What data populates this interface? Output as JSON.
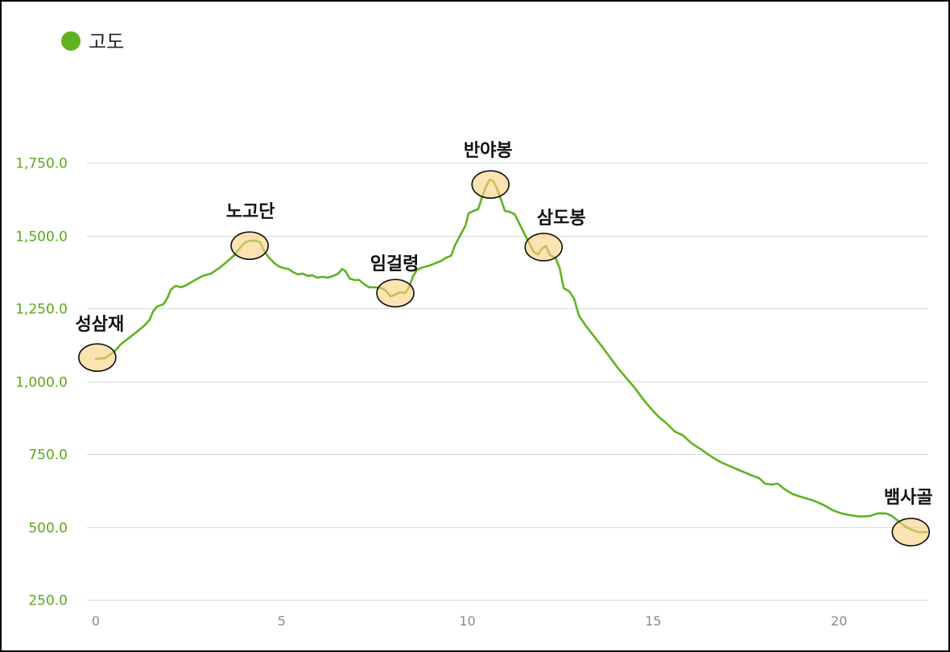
{
  "colors": {
    "grid": "#d8d8d8",
    "y_tick_label": "#58a91a",
    "x_tick_label": "#8a8a8a",
    "legend_text": "#222222",
    "marker_fill": "#fbcf7e",
    "marker_stroke": "#111111",
    "annotation_text": "#111111"
  },
  "chart_data": {
    "type": "line",
    "xlim": [
      0,
      22.4
    ],
    "ylim": [
      250,
      1750
    ],
    "x_ticks": [
      0,
      5,
      10,
      15,
      20
    ],
    "x_tick_labels": [
      "0",
      "5",
      "10",
      "15",
      "20"
    ],
    "y_ticks": [
      250,
      500,
      750,
      1000,
      1250,
      1500,
      1750
    ],
    "y_tick_labels": [
      "250.0",
      "500.0",
      "750.0",
      "1,000.0",
      "1,250.0",
      "1,500.0",
      "1,750.0"
    ],
    "grid": true,
    "legend_position": "top-left",
    "series": [
      {
        "name": "고도",
        "color": "#5fb320",
        "x": [
          0.0,
          0.24,
          0.5,
          0.67,
          0.89,
          1.11,
          1.32,
          1.45,
          1.54,
          1.65,
          1.82,
          1.93,
          2.02,
          2.15,
          2.3,
          2.45,
          2.67,
          2.88,
          3.1,
          3.32,
          3.53,
          3.75,
          3.9,
          4.03,
          4.16,
          4.31,
          4.42,
          4.53,
          4.66,
          4.79,
          4.92,
          5.05,
          5.18,
          5.31,
          5.44,
          5.57,
          5.7,
          5.83,
          5.96,
          6.09,
          6.24,
          6.39,
          6.52,
          6.63,
          6.72,
          6.83,
          6.96,
          7.09,
          7.22,
          7.35,
          7.52,
          7.69,
          7.8,
          7.93,
          8.06,
          8.19,
          8.32,
          8.43,
          8.54,
          8.65,
          8.8,
          8.97,
          9.14,
          9.3,
          9.43,
          9.56,
          9.66,
          9.82,
          9.95,
          10.03,
          10.16,
          10.29,
          10.38,
          10.49,
          10.6,
          10.7,
          10.81,
          10.92,
          11.01,
          11.14,
          11.27,
          11.4,
          11.53,
          11.66,
          11.79,
          11.9,
          12.0,
          12.11,
          12.22,
          12.37,
          12.48,
          12.59,
          12.74,
          12.87,
          13.0,
          13.19,
          13.41,
          13.63,
          13.85,
          14.06,
          14.28,
          14.5,
          14.71,
          14.93,
          15.15,
          15.36,
          15.58,
          15.8,
          16.01,
          16.27,
          16.53,
          16.81,
          17.1,
          17.36,
          17.62,
          17.85,
          18.01,
          18.18,
          18.35,
          18.55,
          18.76,
          19.02,
          19.31,
          19.57,
          19.83,
          20.06,
          20.3,
          20.56,
          20.82,
          21.04,
          21.26,
          21.43,
          21.61,
          21.78,
          21.95,
          22.13,
          22.38
        ],
        "y": [
          1076,
          1079,
          1101,
          1126,
          1148,
          1170,
          1192,
          1211,
          1239,
          1256,
          1264,
          1286,
          1314,
          1327,
          1322,
          1330,
          1347,
          1361,
          1369,
          1388,
          1410,
          1435,
          1460,
          1477,
          1482,
          1482,
          1477,
          1446,
          1424,
          1407,
          1394,
          1388,
          1385,
          1374,
          1366,
          1369,
          1361,
          1363,
          1355,
          1358,
          1355,
          1361,
          1369,
          1385,
          1377,
          1352,
          1347,
          1347,
          1333,
          1322,
          1322,
          1319,
          1311,
          1291,
          1297,
          1305,
          1302,
          1322,
          1361,
          1383,
          1391,
          1396,
          1405,
          1413,
          1424,
          1430,
          1465,
          1504,
          1535,
          1576,
          1584,
          1590,
          1626,
          1664,
          1692,
          1686,
          1656,
          1617,
          1584,
          1581,
          1573,
          1540,
          1507,
          1474,
          1443,
          1435,
          1454,
          1465,
          1432,
          1424,
          1388,
          1319,
          1308,
          1283,
          1225,
          1189,
          1153,
          1117,
          1079,
          1043,
          1010,
          977,
          941,
          907,
          877,
          855,
          827,
          814,
          789,
          767,
          744,
          722,
          706,
          692,
          678,
          667,
          648,
          645,
          648,
          628,
          612,
          601,
          590,
          576,
          557,
          546,
          540,
          535,
          537,
          546,
          546,
          537,
          518,
          501,
          490,
          482,
          482
        ]
      }
    ],
    "annotations": [
      {
        "label": "성삼재",
        "x": 0.04,
        "y": 1081
      },
      {
        "label": "노고단",
        "x": 4.14,
        "y": 1465
      },
      {
        "label": "임걸령",
        "x": 8.06,
        "y": 1302
      },
      {
        "label": "반야봉",
        "x": 10.62,
        "y": 1675
      },
      {
        "label": "삼도봉",
        "x": 12.05,
        "y": 1460
      },
      {
        "label": "뱀사골",
        "x": 21.93,
        "y": 482
      }
    ]
  }
}
